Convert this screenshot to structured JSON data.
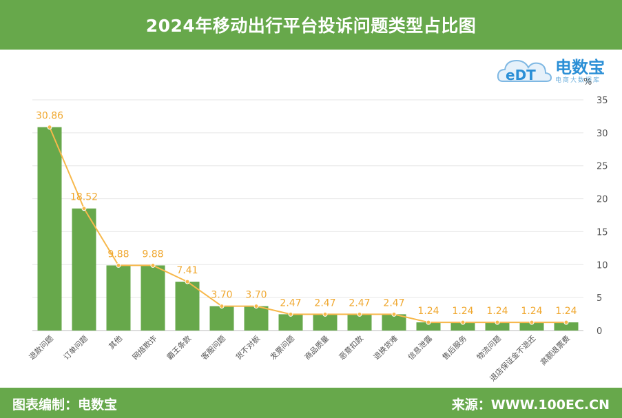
{
  "header": {
    "title": "2024年移动出行平台投诉问题类型占比图"
  },
  "logo": {
    "brand": "电数宝",
    "tagline": "电商大数据库",
    "mark": "eDT"
  },
  "footer": {
    "left": "图表编制：电数宝",
    "right": "来源：WWW.100EC.CN"
  },
  "colors": {
    "bar": "#67a84b",
    "line": "#f7b84b",
    "label": "#f0a830",
    "header_bg": "#67a84b"
  },
  "chart_data": {
    "type": "bar",
    "title": "2024年移动出行平台投诉问题类型占比图",
    "unit": "%",
    "categories": [
      "退款问题",
      "订单问题",
      "其他",
      "网络欺诈",
      "霸王条款",
      "客服问题",
      "货不对板",
      "发票问题",
      "商品质量",
      "恶意扣款",
      "退换货难",
      "信息泄露",
      "售后服务",
      "物流问题",
      "退店保证金不退还",
      "高额退票费"
    ],
    "values": [
      30.86,
      18.52,
      9.88,
      9.88,
      7.41,
      3.7,
      3.7,
      2.47,
      2.47,
      2.47,
      2.47,
      1.24,
      1.24,
      1.24,
      1.24,
      1.24
    ],
    "value_labels": [
      "30.86",
      "18.52",
      "9.88",
      "9.88",
      "7.41",
      "3.70",
      "3.70",
      "2.47",
      "2.47",
      "2.47",
      "2.47",
      "1.24",
      "1.24",
      "1.24",
      "1.24",
      "1.24"
    ],
    "overlay_line": true,
    "y_axis_position": "right",
    "ylim": [
      0,
      35
    ],
    "yticks": [
      0,
      5,
      10,
      15,
      20,
      25,
      30,
      35
    ],
    "grid": true,
    "legend": "none"
  }
}
